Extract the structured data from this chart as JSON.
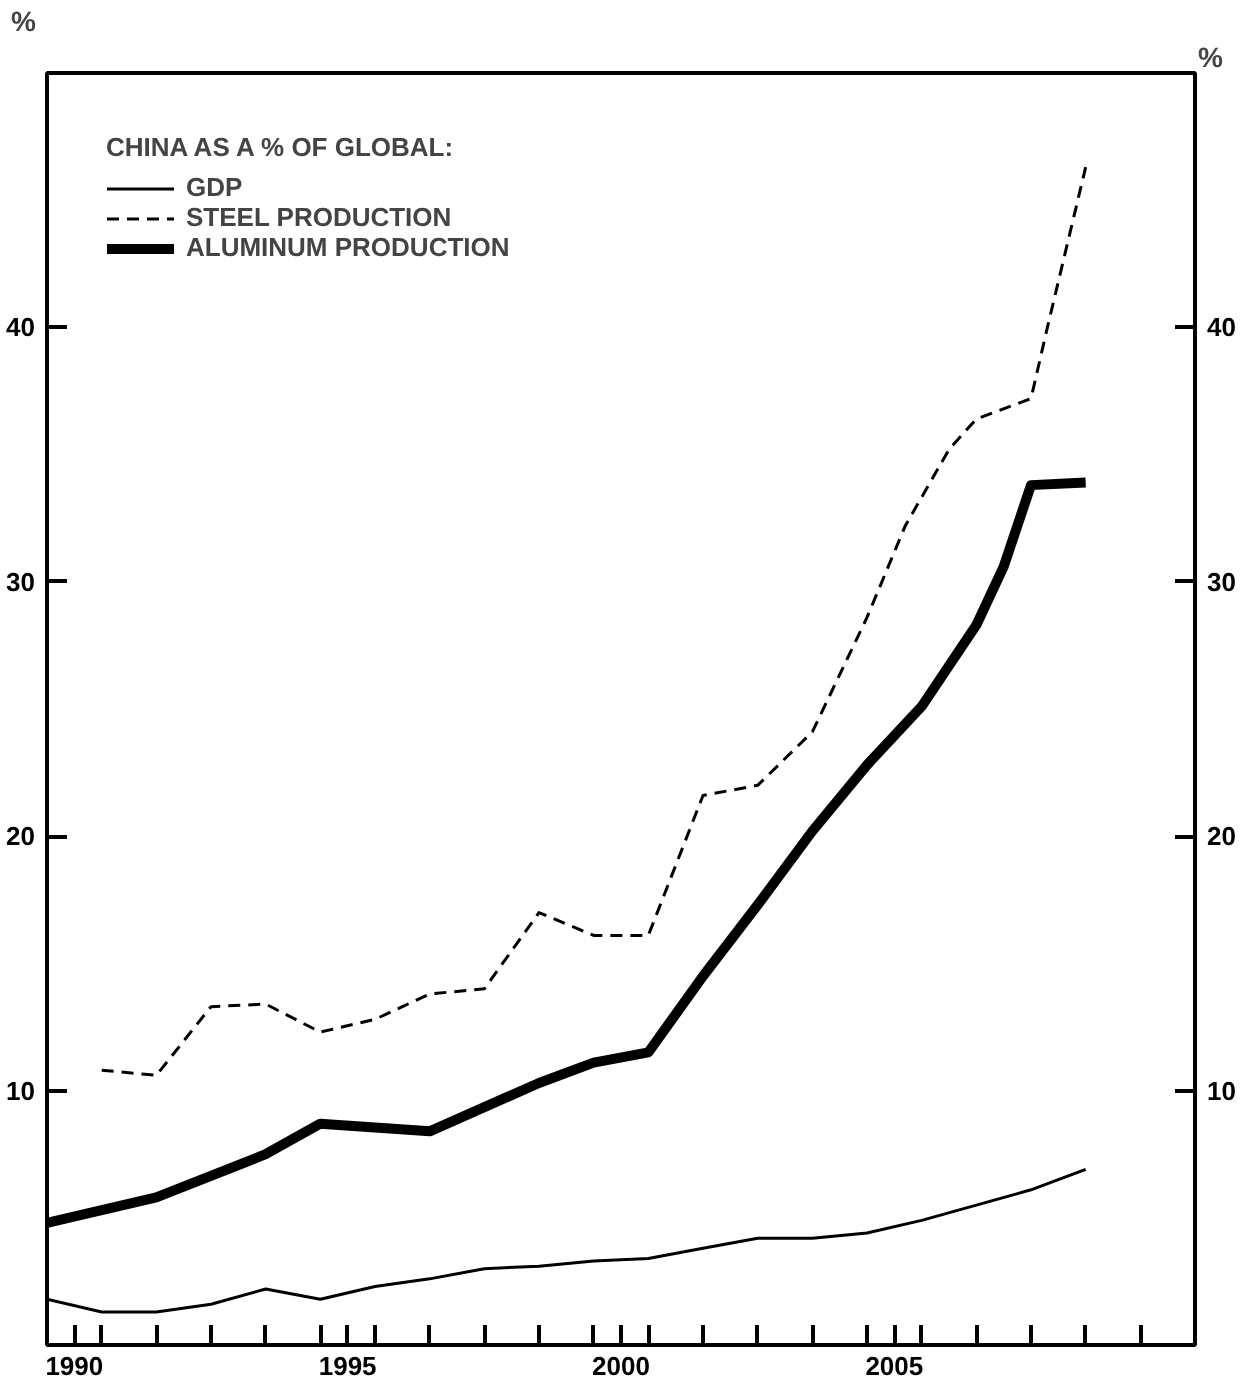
{
  "chart_data": {
    "type": "line",
    "legend_title": "CHINA AS A % OF GLOBAL:",
    "ylabel": "%",
    "y2label": "%",
    "xlim": [
      1990,
      2011
    ],
    "ylim": [
      0,
      50
    ],
    "y2lim": [
      0,
      50
    ],
    "xticks": [
      {
        "value": 1990.5,
        "label": "1990"
      },
      {
        "value": 1995.5,
        "label": "1995"
      },
      {
        "value": 2000.5,
        "label": "2000"
      },
      {
        "value": 2005.5,
        "label": "2005"
      },
      {
        "value": 1991,
        "label": null
      },
      {
        "value": 1992,
        "label": null
      },
      {
        "value": 1993,
        "label": null
      },
      {
        "value": 1994,
        "label": null
      },
      {
        "value": 1995,
        "label": null
      },
      {
        "value": 1996,
        "label": null
      },
      {
        "value": 1997,
        "label": null
      },
      {
        "value": 1998,
        "label": null
      },
      {
        "value": 1999,
        "label": null
      },
      {
        "value": 2000,
        "label": null
      },
      {
        "value": 2001,
        "label": null
      },
      {
        "value": 2002,
        "label": null
      },
      {
        "value": 2003,
        "label": null
      },
      {
        "value": 2004,
        "label": null
      },
      {
        "value": 2005,
        "label": null
      },
      {
        "value": 2006,
        "label": null
      },
      {
        "value": 2007,
        "label": null
      },
      {
        "value": 2008,
        "label": null
      },
      {
        "value": 2009,
        "label": null
      },
      {
        "value": 2010,
        "label": null
      }
    ],
    "yticks": [
      10,
      20,
      30,
      40
    ],
    "y2ticks": [
      10,
      20,
      30,
      40
    ],
    "grid": false,
    "legend": "top left",
    "marker": "none",
    "series": [
      {
        "name": "GDP",
        "color": "#000000",
        "line_style": "solid",
        "x": [
          1990,
          1991,
          1992,
          1993,
          1994,
          1995,
          1996,
          1997,
          1998,
          1999,
          2000,
          2001,
          2002,
          2003,
          2004,
          2005,
          2006,
          2007,
          2008,
          2009
        ],
        "values": [
          1.8,
          1.3,
          1.3,
          1.6,
          2.2,
          1.8,
          2.3,
          2.6,
          3.0,
          3.1,
          3.3,
          3.4,
          3.8,
          4.2,
          4.2,
          4.4,
          4.9,
          5.5,
          6.1,
          6.9
        ]
      },
      {
        "name": "STEEL PRODUCTION",
        "color": "#000000",
        "line_style": "dashed",
        "x": [
          1991,
          1992,
          1993,
          1994,
          1995,
          1996,
          1997,
          1998,
          1999,
          2000,
          2001,
          2002,
          2003,
          2004,
          2005,
          2005.7,
          2006.5,
          2007,
          2008,
          2008.3,
          2009
        ],
        "values": [
          10.8,
          10.6,
          13.3,
          13.4,
          12.3,
          12.8,
          13.8,
          14.0,
          17.0,
          16.1,
          16.1,
          21.6,
          22.0,
          24.1,
          28.6,
          32.2,
          35.2,
          36.4,
          37.2,
          40.0,
          46.3
        ]
      },
      {
        "name": "ALUMINUM PRODUCTION",
        "color": "#000000",
        "line_style": "solid",
        "x": [
          1990,
          1992,
          1994,
          1995,
          1997,
          1999,
          2000,
          2001,
          2002,
          2003,
          2004,
          2005,
          2006,
          2007,
          2007.5,
          2008,
          2009
        ],
        "values": [
          4.8,
          5.8,
          7.5,
          8.7,
          8.4,
          10.3,
          11.1,
          11.5,
          14.5,
          17.3,
          20.2,
          22.8,
          25.1,
          28.3,
          30.6,
          33.8,
          33.9
        ]
      }
    ]
  }
}
